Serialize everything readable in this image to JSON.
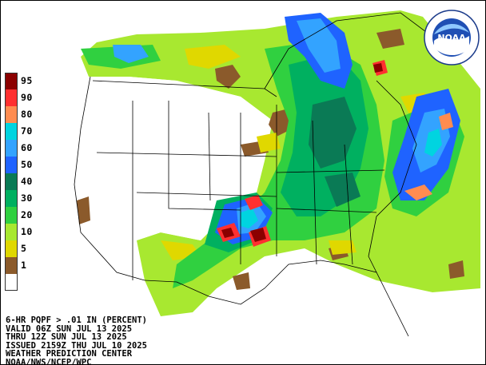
{
  "legend": {
    "levels": [
      {
        "label": "95",
        "color": "#8b0000"
      },
      {
        "label": "90",
        "color": "#ff3030"
      },
      {
        "label": "80",
        "color": "#ff8c50"
      },
      {
        "label": "70",
        "color": "#00d4e0"
      },
      {
        "label": "60",
        "color": "#33a3ff"
      },
      {
        "label": "50",
        "color": "#1f63ff"
      },
      {
        "label": "40",
        "color": "#0a7a55"
      },
      {
        "label": "30",
        "color": "#00b060"
      },
      {
        "label": "20",
        "color": "#30d040"
      },
      {
        "label": "10",
        "color": "#a8e830"
      },
      {
        "label": "5",
        "color": "#e0d800"
      },
      {
        "label": "1",
        "color": "#8b5a2b"
      },
      {
        "label": "",
        "color": "#ffffff"
      }
    ]
  },
  "caption": {
    "line1": "6-HR PQPF > .01 IN (PERCENT)",
    "line2": "VALID 06Z SUN JUL 13 2025",
    "line3": "THRU 12Z SUN JUL 13 2025",
    "line4": "ISSUED 2159Z THU JUL 10 2025",
    "line5": "WEATHER PREDICTION CENTER",
    "line6": "NOAA/NWS/NCEP/WPC"
  },
  "logo": {
    "text": "NOAA",
    "ring_text": "NATIONAL OCEANIC AND ATMOSPHERIC ADMINISTRATION"
  },
  "colors": {
    "background": "#ffffff",
    "land_no_precip": "#ffffff",
    "boundaries": "#000000"
  }
}
